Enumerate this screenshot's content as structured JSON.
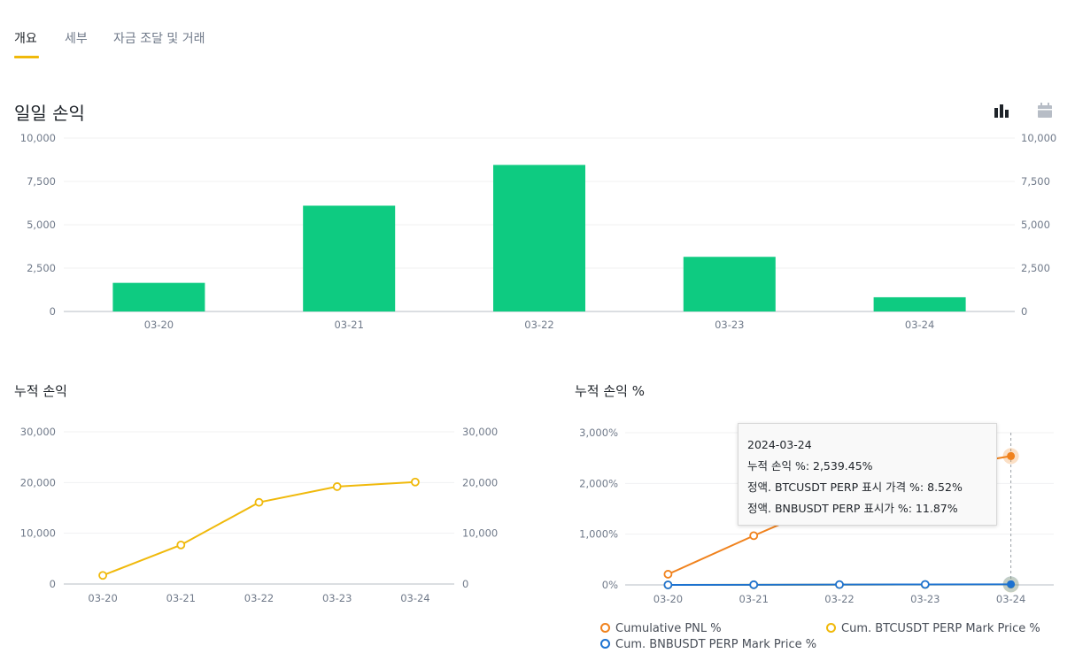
{
  "tabs": [
    {
      "label": "개요",
      "active": true
    },
    {
      "label": "세부",
      "active": false
    },
    {
      "label": "자금 조달 및 거래",
      "active": false
    }
  ],
  "daily": {
    "title": "일일 손익",
    "icons": [
      "bar-chart-icon",
      "calendar-icon"
    ],
    "chart_data": {
      "type": "bar",
      "title": "일일 손익",
      "categories": [
        "03-20",
        "03-21",
        "03-22",
        "03-23",
        "03-24"
      ],
      "values": [
        1650,
        6100,
        8450,
        3150,
        820
      ],
      "yticks": [
        "0",
        "2,500",
        "5,000",
        "7,500",
        "10,000"
      ],
      "ylim": [
        0,
        10000
      ],
      "color": "#0ecb81",
      "grid": true
    }
  },
  "cumulative": {
    "title": "누적 손익",
    "chart_data": {
      "type": "line",
      "title": "누적 손익",
      "categories": [
        "03-20",
        "03-21",
        "03-22",
        "03-23",
        "03-24"
      ],
      "values": [
        1700,
        7700,
        16100,
        19200,
        20100
      ],
      "yticks": [
        "0",
        "10,000",
        "20,000",
        "30,000"
      ],
      "ylim": [
        0,
        30000
      ],
      "color": "#f0b90b",
      "grid": true
    }
  },
  "cumulative_pct": {
    "title": "누적 손익 %",
    "chart_data": {
      "type": "line",
      "title": "누적 손익 %",
      "categories": [
        "03-20",
        "03-21",
        "03-22",
        "03-23",
        "03-24"
      ],
      "yticks": [
        "0%",
        "1,000%",
        "2,000%",
        "3,000%"
      ],
      "ylim": [
        0,
        3000
      ],
      "series": [
        {
          "name": "Cumulative PNL %",
          "color": "#f0821d",
          "values": [
            210,
            970,
            1700,
            2250,
            2539.45
          ]
        },
        {
          "name": "Cum. BTCUSDT PERP Mark Price %",
          "color": "#f0b90b",
          "values": [
            0,
            2,
            5,
            7,
            8.52
          ]
        },
        {
          "name": "Cum. BNBUSDT PERP Mark Price %",
          "color": "#1c72d1",
          "values": [
            0,
            3,
            6,
            9,
            11.87
          ]
        }
      ],
      "grid": true,
      "legend": "bottom"
    },
    "tooltip": {
      "date": "2024-03-24",
      "line1": "누적 손익 %: 2,539.45%",
      "line2": "정액. BTCUSDT PERP 표시 가격 %: 8.52%",
      "line3": "정액. BNBUSDT PERP 표시가 %: 11.87%"
    },
    "legend_items": [
      "Cumulative PNL %",
      "Cum. BTCUSDT PERP Mark Price %",
      "Cum. BNBUSDT PERP Mark Price %"
    ]
  }
}
